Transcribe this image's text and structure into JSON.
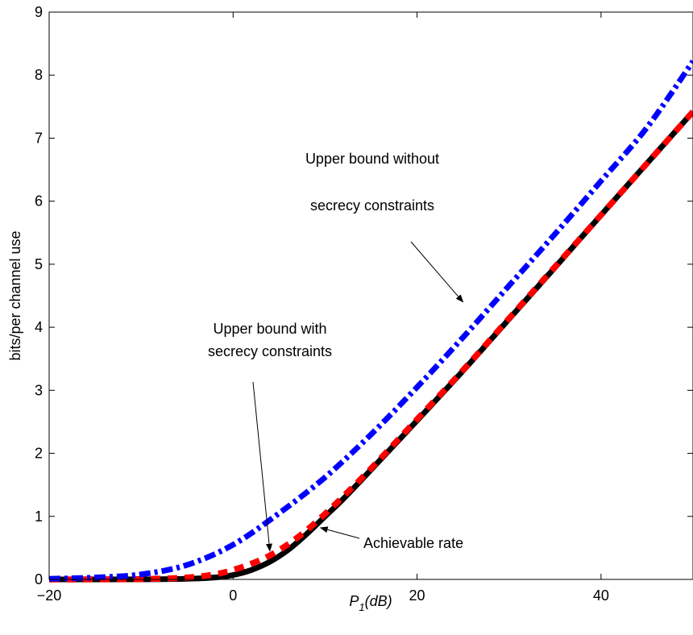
{
  "chart_data": {
    "type": "line",
    "xlabel_main": "P",
    "xlabel_sub": "1",
    "xlabel_unit": "(dB)",
    "ylabel": "bits/per channel use",
    "xlim": [
      -20,
      50
    ],
    "ylim": [
      0,
      9
    ],
    "xticks": [
      -20,
      0,
      20,
      40
    ],
    "xtick_labels": [
      "−20",
      "0",
      "20",
      "40"
    ],
    "yticks": [
      0,
      1,
      2,
      3,
      4,
      5,
      6,
      7,
      8,
      9
    ],
    "grid": false,
    "colors": {
      "upper_without": "#0000ff",
      "upper_with": "#ff0000",
      "achievable": "#000000"
    },
    "series": [
      {
        "key": "achievable",
        "x": [
          -20,
          -10,
          -5,
          -2,
          0,
          2,
          4,
          6,
          8,
          10,
          12,
          15,
          20,
          25,
          30,
          35,
          40,
          45,
          50
        ],
        "values": [
          0,
          0.002,
          0.01,
          0.03,
          0.07,
          0.15,
          0.28,
          0.47,
          0.72,
          1.0,
          1.28,
          1.74,
          2.52,
          3.31,
          4.13,
          4.95,
          5.78,
          6.6,
          7.42
        ]
      },
      {
        "key": "upper_with",
        "x": [
          -20,
          -10,
          -5,
          -2,
          0,
          2,
          4,
          6,
          8,
          10,
          12,
          15,
          20,
          25,
          30,
          35,
          40,
          45,
          50
        ],
        "values": [
          0,
          0.005,
          0.03,
          0.08,
          0.15,
          0.25,
          0.38,
          0.56,
          0.78,
          1.04,
          1.32,
          1.76,
          2.54,
          3.32,
          4.14,
          4.96,
          5.78,
          6.6,
          7.42
        ]
      },
      {
        "key": "upper_without",
        "x": [
          -20,
          -15,
          -10,
          -5,
          0,
          5,
          10,
          15,
          20,
          25,
          30,
          35,
          40,
          45,
          50
        ],
        "values": [
          0.01,
          0.03,
          0.08,
          0.23,
          0.55,
          1.05,
          1.62,
          2.3,
          3.05,
          3.84,
          4.66,
          5.48,
          6.32,
          7.17,
          8.22
        ]
      }
    ],
    "annotations": [
      {
        "key": "without",
        "lines": [
          "Upper bound without",
          "secrecy constraints"
        ],
        "arrow_target": [
          25,
          4.4
        ]
      },
      {
        "key": "with",
        "lines": [
          "Upper bound with",
          "secrecy constraints"
        ],
        "arrow_target": [
          4,
          0.45
        ]
      },
      {
        "key": "achievable",
        "lines": [
          "Achievable rate"
        ],
        "arrow_target": [
          9.5,
          0.82
        ]
      }
    ]
  }
}
